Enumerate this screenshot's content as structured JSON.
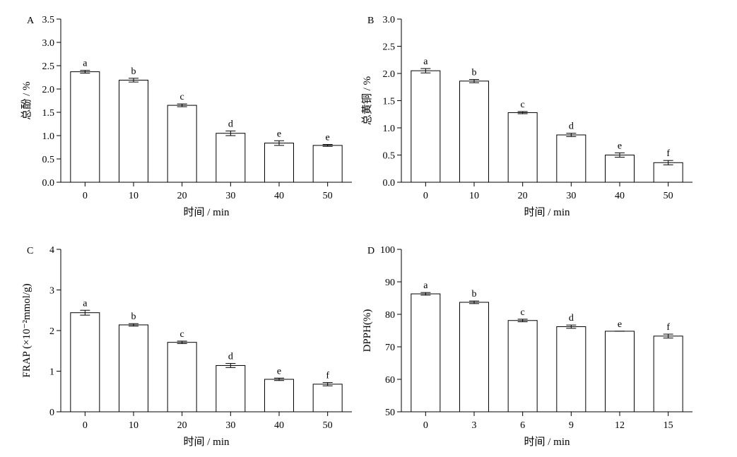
{
  "figure": {
    "background": "#ffffff",
    "bar_fill": "#ffffff",
    "stroke": "#000000"
  },
  "chart_data": [
    {
      "type": "bar",
      "panel_label": "A",
      "categories": [
        "0",
        "10",
        "20",
        "30",
        "40",
        "50"
      ],
      "values": [
        2.37,
        2.19,
        1.65,
        1.05,
        0.84,
        0.79
      ],
      "errors": [
        0.03,
        0.04,
        0.03,
        0.05,
        0.05,
        0.02
      ],
      "sig_letters": [
        "a",
        "b",
        "c",
        "d",
        "e",
        "e"
      ],
      "xlabel": "时间 / min",
      "ylabel": "总酚 / %",
      "ylim": [
        0,
        3.5
      ],
      "yticks": [
        "0.0",
        "0.5",
        "1.0",
        "1.5",
        "2.0",
        "2.5",
        "3.0",
        "3.5"
      ]
    },
    {
      "type": "bar",
      "panel_label": "B",
      "categories": [
        "0",
        "10",
        "20",
        "30",
        "40",
        "50"
      ],
      "values": [
        2.05,
        1.86,
        1.28,
        0.87,
        0.5,
        0.36
      ],
      "errors": [
        0.04,
        0.03,
        0.02,
        0.03,
        0.04,
        0.04
      ],
      "sig_letters": [
        "a",
        "b",
        "c",
        "d",
        "e",
        "f"
      ],
      "xlabel": "时间 / min",
      "ylabel": "总黄铜 / %",
      "ylim": [
        0,
        3.0
      ],
      "yticks": [
        "0.0",
        "0.5",
        "1.0",
        "1.5",
        "2.0",
        "2.5",
        "3.0"
      ]
    },
    {
      "type": "bar",
      "panel_label": "C",
      "categories": [
        "0",
        "10",
        "20",
        "30",
        "40",
        "50"
      ],
      "values": [
        2.44,
        2.14,
        1.71,
        1.14,
        0.8,
        0.68
      ],
      "errors": [
        0.06,
        0.03,
        0.03,
        0.05,
        0.03,
        0.04
      ],
      "sig_letters": [
        "a",
        "b",
        "c",
        "d",
        "e",
        "f"
      ],
      "xlabel": "时间 / min",
      "ylabel": "FRAP (×10⁻²mmol/g)",
      "ylim": [
        0,
        4
      ],
      "yticks": [
        "0",
        "1",
        "2",
        "3",
        "4"
      ]
    },
    {
      "type": "bar",
      "panel_label": "D",
      "categories": [
        "0",
        "3",
        "6",
        "9",
        "12",
        "15"
      ],
      "values": [
        86.3,
        83.7,
        78.1,
        76.2,
        74.8,
        73.3
      ],
      "errors": [
        0.4,
        0.4,
        0.4,
        0.5,
        0.0,
        0.6
      ],
      "sig_letters": [
        "a",
        "b",
        "c",
        "d",
        "e",
        "f"
      ],
      "xlabel": "时间 / min",
      "ylabel": "DPPH(%)",
      "ylim": [
        50,
        100
      ],
      "yticks": [
        "50",
        "60",
        "70",
        "80",
        "90",
        "100"
      ]
    }
  ]
}
